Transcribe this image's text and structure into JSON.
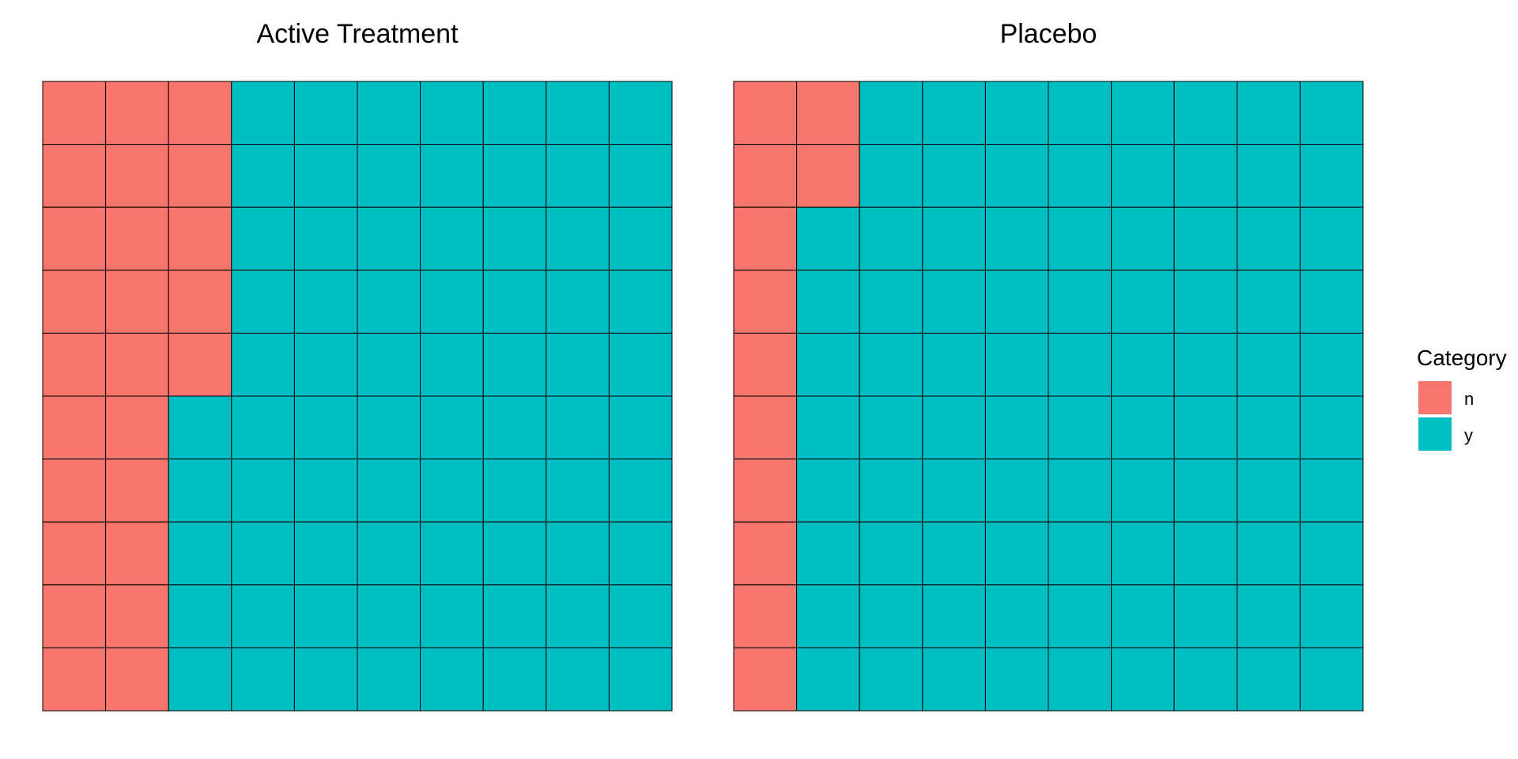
{
  "chart_data": {
    "type": "waffle",
    "grid": {
      "rows": 10,
      "cols": 10
    },
    "fill_order": "column-major, starting top-left, filling down each column",
    "panels": [
      {
        "title": "Active Treatment",
        "counts": {
          "n": 25,
          "y": 75
        }
      },
      {
        "title": "Placebo",
        "counts": {
          "n": 12,
          "y": 88
        }
      }
    ],
    "legend": {
      "title": "Category",
      "position": "right",
      "entries": [
        {
          "key": "n",
          "label": "n",
          "color": "#F8766D"
        },
        {
          "key": "y",
          "label": "y",
          "color": "#00BFC4"
        }
      ]
    },
    "grid_lines": false
  }
}
